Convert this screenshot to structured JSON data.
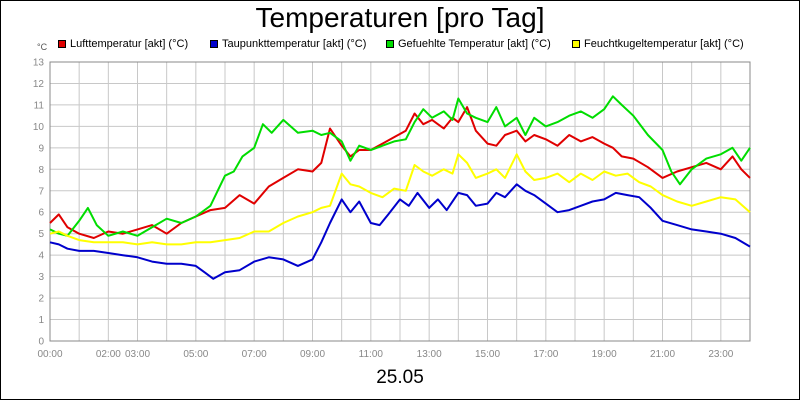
{
  "chart_data": {
    "type": "line",
    "title": "Temperaturen [pro Tag]",
    "date_label": "25.05",
    "y_unit": "°C",
    "ylim": [
      0,
      13
    ],
    "y_ticks": [
      "0",
      "1",
      "2",
      "3",
      "4",
      "5",
      "6",
      "7",
      "8",
      "9",
      "10",
      "11",
      "12",
      "13"
    ],
    "xlim": [
      0,
      24
    ],
    "x_tick_labels": [
      {
        "label": "00:00",
        "hour": 0
      },
      {
        "label": "02:00",
        "hour": 2
      },
      {
        "label": "03:00",
        "hour": 3
      },
      {
        "label": "05:00",
        "hour": 5
      },
      {
        "label": "07:00",
        "hour": 7
      },
      {
        "label": "09:00",
        "hour": 9
      },
      {
        "label": "11:00",
        "hour": 11
      },
      {
        "label": "13:00",
        "hour": 13
      },
      {
        "label": "15:00",
        "hour": 15
      },
      {
        "label": "17:00",
        "hour": 17
      },
      {
        "label": "19:00",
        "hour": 19
      },
      {
        "label": "21:00",
        "hour": 21
      },
      {
        "label": "23:00",
        "hour": 23
      }
    ],
    "grid": true,
    "legend_position": "top",
    "series": [
      {
        "name": "Lufttemperatur [akt] (°C)",
        "color": "#e00000",
        "x": [
          0,
          0.3,
          0.6,
          1.0,
          1.5,
          2.0,
          2.5,
          3.0,
          3.5,
          4.0,
          4.5,
          5.0,
          5.5,
          6.0,
          6.5,
          7.0,
          7.5,
          8.0,
          8.5,
          9.0,
          9.3,
          9.6,
          10.0,
          10.3,
          10.6,
          11.0,
          11.4,
          11.8,
          12.2,
          12.5,
          12.8,
          13.1,
          13.5,
          13.8,
          14.0,
          14.3,
          14.6,
          15.0,
          15.3,
          15.6,
          16.0,
          16.3,
          16.6,
          17.0,
          17.4,
          17.8,
          18.2,
          18.6,
          19.0,
          19.3,
          19.6,
          20.0,
          20.5,
          21.0,
          21.5,
          22.0,
          22.5,
          23.0,
          23.4,
          23.7,
          24.0
        ],
        "y": [
          5.5,
          5.9,
          5.3,
          5.0,
          4.8,
          5.1,
          5.0,
          5.2,
          5.4,
          5.0,
          5.5,
          5.8,
          6.1,
          6.2,
          6.8,
          6.4,
          7.2,
          7.6,
          8.0,
          7.9,
          8.3,
          9.9,
          9.1,
          8.6,
          8.9,
          8.9,
          9.2,
          9.5,
          9.8,
          10.6,
          10.1,
          10.3,
          9.9,
          10.4,
          10.2,
          10.9,
          9.8,
          9.2,
          9.1,
          9.6,
          9.8,
          9.3,
          9.6,
          9.4,
          9.1,
          9.6,
          9.3,
          9.5,
          9.2,
          9.0,
          8.6,
          8.5,
          8.1,
          7.6,
          7.9,
          8.1,
          8.3,
          8.0,
          8.6,
          8.0,
          7.6
        ]
      },
      {
        "name": "Taupunkttemperatur [akt] (°C)",
        "color": "#0000cc",
        "x": [
          0,
          0.3,
          0.6,
          1.0,
          1.5,
          2.0,
          2.5,
          3.0,
          3.5,
          4.0,
          4.5,
          5.0,
          5.3,
          5.6,
          6.0,
          6.5,
          7.0,
          7.5,
          8.0,
          8.5,
          9.0,
          9.3,
          9.6,
          10.0,
          10.3,
          10.6,
          11.0,
          11.3,
          11.6,
          12.0,
          12.3,
          12.6,
          13.0,
          13.3,
          13.6,
          14.0,
          14.3,
          14.6,
          15.0,
          15.3,
          15.6,
          16.0,
          16.3,
          16.6,
          17.0,
          17.4,
          17.8,
          18.2,
          18.6,
          19.0,
          19.4,
          19.8,
          20.2,
          20.6,
          21.0,
          21.5,
          22.0,
          22.5,
          23.0,
          23.5,
          24.0
        ],
        "y": [
          4.6,
          4.5,
          4.3,
          4.2,
          4.2,
          4.1,
          4.0,
          3.9,
          3.7,
          3.6,
          3.6,
          3.5,
          3.2,
          2.9,
          3.2,
          3.3,
          3.7,
          3.9,
          3.8,
          3.5,
          3.8,
          4.6,
          5.5,
          6.6,
          6.0,
          6.5,
          5.5,
          5.4,
          5.9,
          6.6,
          6.3,
          6.9,
          6.2,
          6.6,
          6.1,
          6.9,
          6.8,
          6.3,
          6.4,
          6.9,
          6.7,
          7.3,
          7.0,
          6.8,
          6.4,
          6.0,
          6.1,
          6.3,
          6.5,
          6.6,
          6.9,
          6.8,
          6.7,
          6.2,
          5.6,
          5.4,
          5.2,
          5.1,
          5.0,
          4.8,
          4.4
        ]
      },
      {
        "name": "Gefuehlte Temperatur [akt] (°C)",
        "color": "#00dd00",
        "x": [
          0,
          0.3,
          0.6,
          1.0,
          1.3,
          1.6,
          2.0,
          2.5,
          3.0,
          3.5,
          4.0,
          4.5,
          5.0,
          5.5,
          6.0,
          6.3,
          6.6,
          7.0,
          7.3,
          7.6,
          8.0,
          8.5,
          9.0,
          9.3,
          9.6,
          10.0,
          10.3,
          10.6,
          11.0,
          11.4,
          11.8,
          12.2,
          12.5,
          12.8,
          13.1,
          13.5,
          13.8,
          14.0,
          14.3,
          14.6,
          15.0,
          15.3,
          15.6,
          16.0,
          16.3,
          16.6,
          17.0,
          17.4,
          17.8,
          18.2,
          18.6,
          19.0,
          19.3,
          19.6,
          20.0,
          20.5,
          21.0,
          21.3,
          21.6,
          22.0,
          22.5,
          23.0,
          23.4,
          23.7,
          24.0
        ],
        "y": [
          5.2,
          5.0,
          4.9,
          5.6,
          6.2,
          5.4,
          4.9,
          5.1,
          4.9,
          5.3,
          5.7,
          5.5,
          5.8,
          6.3,
          7.7,
          7.9,
          8.6,
          9.0,
          10.1,
          9.7,
          10.3,
          9.7,
          9.8,
          9.6,
          9.7,
          9.3,
          8.4,
          9.1,
          8.9,
          9.1,
          9.3,
          9.4,
          10.2,
          10.8,
          10.4,
          10.7,
          10.3,
          11.3,
          10.6,
          10.4,
          10.2,
          10.9,
          10.0,
          10.4,
          9.6,
          10.4,
          10.0,
          10.2,
          10.5,
          10.7,
          10.4,
          10.8,
          11.4,
          11.0,
          10.5,
          9.6,
          8.9,
          7.9,
          7.3,
          8.0,
          8.5,
          8.7,
          9.0,
          8.4,
          9.0
        ]
      },
      {
        "name": "Feuchtkugeltemperatur [akt] (°C)",
        "color": "#ffff00",
        "x": [
          0,
          0.3,
          0.6,
          1.0,
          1.5,
          2.0,
          2.5,
          3.0,
          3.5,
          4.0,
          4.5,
          5.0,
          5.5,
          6.0,
          6.5,
          7.0,
          7.5,
          8.0,
          8.5,
          9.0,
          9.3,
          9.6,
          10.0,
          10.3,
          10.6,
          11.0,
          11.4,
          11.8,
          12.2,
          12.5,
          12.8,
          13.1,
          13.5,
          13.8,
          14.0,
          14.3,
          14.6,
          15.0,
          15.3,
          15.6,
          16.0,
          16.3,
          16.6,
          17.0,
          17.4,
          17.8,
          18.2,
          18.6,
          19.0,
          19.4,
          19.8,
          20.2,
          20.6,
          21.0,
          21.5,
          22.0,
          22.5,
          23.0,
          23.5,
          24.0
        ],
        "y": [
          5.0,
          5.1,
          4.9,
          4.7,
          4.6,
          4.6,
          4.6,
          4.5,
          4.6,
          4.5,
          4.5,
          4.6,
          4.6,
          4.7,
          4.8,
          5.1,
          5.1,
          5.5,
          5.8,
          6.0,
          6.2,
          6.3,
          7.8,
          7.3,
          7.2,
          6.9,
          6.7,
          7.1,
          7.0,
          8.2,
          7.9,
          7.7,
          8.0,
          7.8,
          8.7,
          8.3,
          7.6,
          7.8,
          8.0,
          7.6,
          8.7,
          7.9,
          7.5,
          7.6,
          7.8,
          7.4,
          7.8,
          7.5,
          7.9,
          7.7,
          7.8,
          7.4,
          7.2,
          6.8,
          6.5,
          6.3,
          6.5,
          6.7,
          6.6,
          6.0
        ]
      }
    ]
  }
}
